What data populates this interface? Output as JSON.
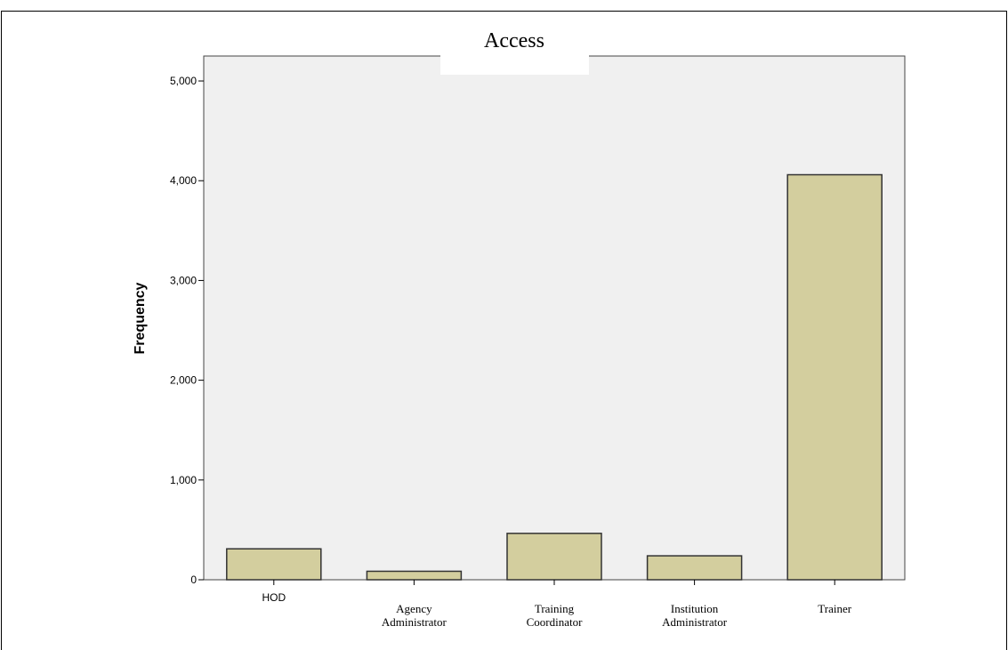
{
  "chart_data": {
    "type": "bar",
    "title": "Access",
    "xlabel": "",
    "ylabel": "Frequency",
    "categories": [
      "HOD",
      "Agency Administrator",
      "Training Coordinator",
      "Institution Administrator",
      "Trainer"
    ],
    "category_lines": [
      [
        "HOD"
      ],
      [
        "Agency",
        "Administrator"
      ],
      [
        "Training",
        "Coordinator"
      ],
      [
        "Institution",
        "Administrator"
      ],
      [
        "Trainer"
      ]
    ],
    "values": [
      310,
      85,
      465,
      240,
      4060
    ],
    "ylim": [
      0,
      5250
    ],
    "yticks": [
      0,
      1000,
      2000,
      3000,
      4000,
      5000
    ],
    "ytick_labels": [
      "0",
      "1,000",
      "2,000",
      "3,000",
      "4,000",
      "5,000"
    ],
    "grid": false,
    "colors": {
      "bar_fill": "#d3ce9e",
      "bar_stroke": "#333333",
      "plot_background": "#f0f0f0",
      "axis": "#000000"
    }
  }
}
